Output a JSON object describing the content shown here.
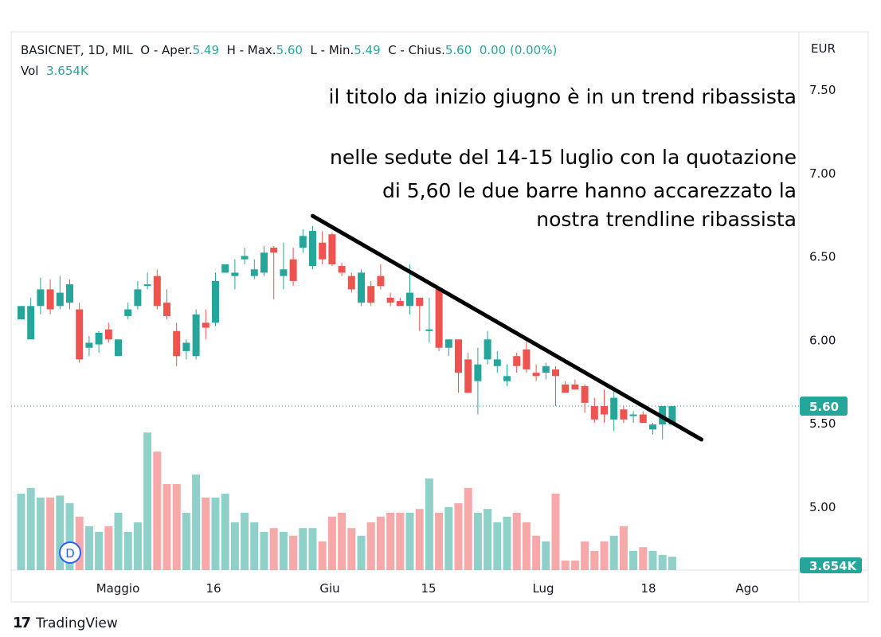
{
  "header": {
    "symbol": "BASICNET, 1D, MIL",
    "open_label": "O - Aper.",
    "open": "5.49",
    "high_label": "H - Max.",
    "high": "5.60",
    "low_label": "L - Min.",
    "low": "5.49",
    "close_label": "C - Chius.",
    "close": "5.60",
    "change": "0.00 (0.00%)",
    "vol_label": "Vol",
    "vol_value": "3.654K"
  },
  "currency": "EUR",
  "annotation": {
    "line1": "il titolo da inizio giugno è in un trend ribassista",
    "line2": "nelle sedute del 14-15 luglio con la quotazione",
    "line3": "di 5,60 le due barre hanno accarezzato la",
    "line4": "nostra trendline ribassista"
  },
  "branding": "TradingView",
  "colors": {
    "up": "#26a69a",
    "down": "#ef5350",
    "up_vol": "#8fd1c9",
    "down_vol": "#f6a9a8",
    "trendline": "#000000"
  },
  "chart_data": {
    "type": "candlestick",
    "y_ticks": [
      "7.50",
      "7.00",
      "6.50",
      "6.00",
      "5.50",
      "5.00"
    ],
    "x_ticks": [
      "Maggio",
      "16",
      "Giu",
      "15",
      "Lug",
      "18",
      "Ago"
    ],
    "ylim": [
      4.63,
      7.75
    ],
    "last_price_label": "5.60",
    "last_volume_label": "3.654K",
    "event_marker": "D",
    "trendline": {
      "from": {
        "index": 30,
        "price": 6.74
      },
      "to": {
        "index": 70,
        "price": 5.4
      }
    },
    "candles": [
      {
        "o": 6.12,
        "h": 6.2,
        "l": 6.12,
        "c": 6.2,
        "v": 0.4
      },
      {
        "o": 6.0,
        "h": 6.25,
        "l": 6.0,
        "c": 6.2,
        "v": 0.43
      },
      {
        "o": 6.2,
        "h": 6.37,
        "l": 6.15,
        "c": 6.3,
        "v": 0.38
      },
      {
        "o": 6.3,
        "h": 6.36,
        "l": 6.15,
        "c": 6.18,
        "v": 0.38
      },
      {
        "o": 6.2,
        "h": 6.38,
        "l": 6.18,
        "c": 6.28,
        "v": 0.39
      },
      {
        "o": 6.22,
        "h": 6.36,
        "l": 6.18,
        "c": 6.33,
        "v": 0.35
      },
      {
        "o": 6.18,
        "h": 6.22,
        "l": 5.86,
        "c": 5.88,
        "v": 0.28
      },
      {
        "o": 5.95,
        "h": 6.02,
        "l": 5.9,
        "c": 5.98,
        "v": 0.23
      },
      {
        "o": 5.97,
        "h": 6.05,
        "l": 5.92,
        "c": 6.04,
        "v": 0.2
      },
      {
        "o": 6.06,
        "h": 6.1,
        "l": 5.98,
        "c": 6.0,
        "v": 0.23
      },
      {
        "o": 5.9,
        "h": 6.0,
        "l": 5.9,
        "c": 6.0,
        "v": 0.3
      },
      {
        "o": 6.14,
        "h": 6.22,
        "l": 6.12,
        "c": 6.18,
        "v": 0.2
      },
      {
        "o": 6.2,
        "h": 6.35,
        "l": 6.18,
        "c": 6.3,
        "v": 0.25
      },
      {
        "o": 6.32,
        "h": 6.4,
        "l": 6.3,
        "c": 6.33,
        "v": 0.72
      },
      {
        "o": 6.38,
        "h": 6.42,
        "l": 6.18,
        "c": 6.2,
        "v": 0.62
      },
      {
        "o": 6.22,
        "h": 6.3,
        "l": 6.12,
        "c": 6.14,
        "v": 0.45
      },
      {
        "o": 6.05,
        "h": 6.1,
        "l": 5.84,
        "c": 5.9,
        "v": 0.45
      },
      {
        "o": 5.93,
        "h": 6.0,
        "l": 5.88,
        "c": 5.98,
        "v": 0.3
      },
      {
        "o": 5.9,
        "h": 6.18,
        "l": 5.88,
        "c": 6.15,
        "v": 0.5
      },
      {
        "o": 6.1,
        "h": 6.18,
        "l": 6.0,
        "c": 6.07,
        "v": 0.38
      },
      {
        "o": 6.1,
        "h": 6.4,
        "l": 6.08,
        "c": 6.35,
        "v": 0.38
      },
      {
        "o": 6.4,
        "h": 6.45,
        "l": 6.4,
        "c": 6.45,
        "v": 0.4
      },
      {
        "o": 6.38,
        "h": 6.48,
        "l": 6.3,
        "c": 6.4,
        "v": 0.25
      },
      {
        "o": 6.48,
        "h": 6.55,
        "l": 6.45,
        "c": 6.5,
        "v": 0.3
      },
      {
        "o": 6.38,
        "h": 6.48,
        "l": 6.36,
        "c": 6.42,
        "v": 0.25
      },
      {
        "o": 6.4,
        "h": 6.56,
        "l": 6.38,
        "c": 6.52,
        "v": 0.2
      },
      {
        "o": 6.55,
        "h": 6.56,
        "l": 6.24,
        "c": 6.52,
        "v": 0.22
      },
      {
        "o": 6.38,
        "h": 6.58,
        "l": 6.3,
        "c": 6.42,
        "v": 0.2
      },
      {
        "o": 6.48,
        "h": 6.55,
        "l": 6.32,
        "c": 6.35,
        "v": 0.18
      },
      {
        "o": 6.55,
        "h": 6.66,
        "l": 6.52,
        "c": 6.62,
        "v": 0.22
      },
      {
        "o": 6.44,
        "h": 6.68,
        "l": 6.42,
        "c": 6.65,
        "v": 0.22
      },
      {
        "o": 6.58,
        "h": 6.65,
        "l": 6.45,
        "c": 6.48,
        "v": 0.15
      },
      {
        "o": 6.63,
        "h": 6.64,
        "l": 6.44,
        "c": 6.45,
        "v": 0.28
      },
      {
        "o": 6.44,
        "h": 6.46,
        "l": 6.38,
        "c": 6.4,
        "v": 0.3
      },
      {
        "o": 6.38,
        "h": 6.4,
        "l": 6.28,
        "c": 6.3,
        "v": 0.22
      },
      {
        "o": 6.22,
        "h": 6.42,
        "l": 6.2,
        "c": 6.4,
        "v": 0.18
      },
      {
        "o": 6.32,
        "h": 6.35,
        "l": 6.2,
        "c": 6.22,
        "v": 0.25
      },
      {
        "o": 6.38,
        "h": 6.45,
        "l": 6.3,
        "c": 6.32,
        "v": 0.28
      },
      {
        "o": 6.25,
        "h": 6.28,
        "l": 6.2,
        "c": 6.22,
        "v": 0.3
      },
      {
        "o": 6.23,
        "h": 6.25,
        "l": 6.2,
        "c": 6.2,
        "v": 0.3
      },
      {
        "o": 6.2,
        "h": 6.45,
        "l": 6.15,
        "c": 6.28,
        "v": 0.3
      },
      {
        "o": 6.25,
        "h": 6.25,
        "l": 6.05,
        "c": 6.2,
        "v": 0.32
      },
      {
        "o": 6.05,
        "h": 6.25,
        "l": 5.98,
        "c": 6.06,
        "v": 0.48
      },
      {
        "o": 6.3,
        "h": 6.3,
        "l": 5.93,
        "c": 5.95,
        "v": 0.3
      },
      {
        "o": 5.95,
        "h": 6.0,
        "l": 5.9,
        "c": 6.0,
        "v": 0.33
      },
      {
        "o": 6.0,
        "h": 6.0,
        "l": 5.68,
        "c": 5.8,
        "v": 0.35
      },
      {
        "o": 5.88,
        "h": 5.92,
        "l": 5.68,
        "c": 5.68,
        "v": 0.43
      },
      {
        "o": 5.75,
        "h": 5.95,
        "l": 5.55,
        "c": 5.85,
        "v": 0.3
      },
      {
        "o": 5.88,
        "h": 6.05,
        "l": 5.85,
        "c": 6.0,
        "v": 0.32
      },
      {
        "o": 5.84,
        "h": 5.93,
        "l": 5.8,
        "c": 5.88,
        "v": 0.25
      },
      {
        "o": 5.75,
        "h": 5.85,
        "l": 5.72,
        "c": 5.78,
        "v": 0.28
      },
      {
        "o": 5.9,
        "h": 5.92,
        "l": 5.8,
        "c": 5.84,
        "v": 0.3
      },
      {
        "o": 5.94,
        "h": 5.99,
        "l": 5.8,
        "c": 5.82,
        "v": 0.25
      },
      {
        "o": 5.8,
        "h": 5.85,
        "l": 5.75,
        "c": 5.78,
        "v": 0.18
      },
      {
        "o": 5.8,
        "h": 5.86,
        "l": 5.76,
        "c": 5.84,
        "v": 0.15
      },
      {
        "o": 5.82,
        "h": 5.84,
        "l": 5.6,
        "c": 5.78,
        "v": 0.4
      },
      {
        "o": 5.73,
        "h": 5.75,
        "l": 5.68,
        "c": 5.68,
        "v": 0.05
      },
      {
        "o": 5.73,
        "h": 5.76,
        "l": 5.7,
        "c": 5.7,
        "v": 0.05
      },
      {
        "o": 5.72,
        "h": 5.73,
        "l": 5.56,
        "c": 5.62,
        "v": 0.15
      },
      {
        "o": 5.6,
        "h": 5.65,
        "l": 5.5,
        "c": 5.52,
        "v": 0.1
      },
      {
        "o": 5.6,
        "h": 5.7,
        "l": 5.5,
        "c": 5.55,
        "v": 0.15
      },
      {
        "o": 5.52,
        "h": 5.7,
        "l": 5.45,
        "c": 5.65,
        "v": 0.18
      },
      {
        "o": 5.58,
        "h": 5.6,
        "l": 5.5,
        "c": 5.52,
        "v": 0.23
      },
      {
        "o": 5.55,
        "h": 5.57,
        "l": 5.5,
        "c": 5.55,
        "v": 0.1
      },
      {
        "o": 5.55,
        "h": 5.57,
        "l": 5.5,
        "c": 5.5,
        "v": 0.12
      },
      {
        "o": 5.46,
        "h": 5.5,
        "l": 5.43,
        "c": 5.49,
        "v": 0.1
      },
      {
        "o": 5.49,
        "h": 5.6,
        "l": 5.4,
        "c": 5.6,
        "v": 0.08
      },
      {
        "o": 5.49,
        "h": 5.6,
        "l": 5.49,
        "c": 5.6,
        "v": 0.07
      }
    ]
  }
}
